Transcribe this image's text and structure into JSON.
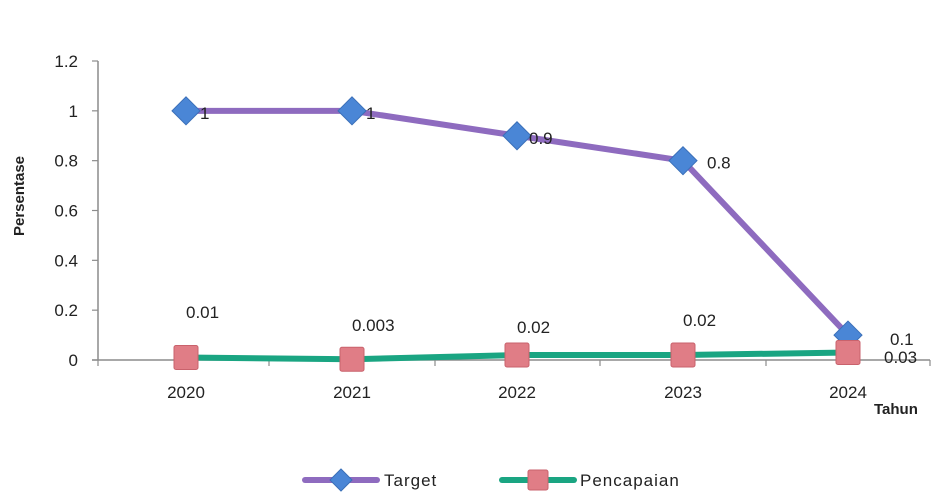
{
  "chart_data": {
    "type": "line",
    "categories": [
      "2020",
      "2021",
      "2022",
      "2023",
      "2024"
    ],
    "series": [
      {
        "name": "Target",
        "values": [
          1,
          1,
          0.9,
          0.8,
          0.1
        ],
        "labels": [
          "1",
          "1",
          "0.9",
          "0.8",
          "0.1"
        ],
        "color": "#8e6bbf",
        "marker": "diamond",
        "marker_color": "#4a86d6"
      },
      {
        "name": "Pencapaian",
        "values": [
          0.01,
          0.003,
          0.02,
          0.02,
          0.03
        ],
        "labels": [
          "0.01",
          "0.003",
          "0.02",
          "0.02",
          "0.03"
        ],
        "color": "#1aa582",
        "marker": "square",
        "marker_color": "#e07d86"
      }
    ],
    "ylabel": "Persentase",
    "xlabel": "Tahun",
    "ylim": [
      0,
      1.2
    ],
    "yticks": [
      "0",
      "0.2",
      "0.4",
      "0.6",
      "0.8",
      "1",
      "1.2"
    ],
    "grid": false,
    "legend_position": "bottom"
  }
}
